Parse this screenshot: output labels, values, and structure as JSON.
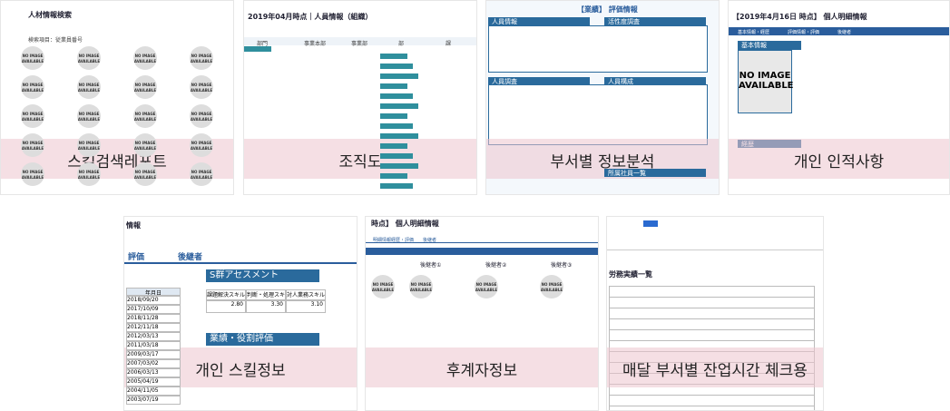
{
  "tiles": [
    {
      "caption": "스킬검색레포트",
      "heading": "人材情報検索",
      "sub": "検索項目：従業員番号",
      "no_image": "NO IMAGE AVAILABLE"
    },
    {
      "caption": "조직도",
      "heading": "2019年04月時点｜人員情報（組織）",
      "columns": [
        "部門",
        "事業本部",
        "事業部",
        "部",
        "課"
      ]
    },
    {
      "caption": "부서별 정보분석",
      "heading": "【業績】 評価情報",
      "panels": [
        "人員情報",
        "活性度調査",
        "人員調査",
        "人員構成",
        "所属社員一覧"
      ]
    },
    {
      "caption": "개인 인적사항",
      "heading": "【2019年4月16日 時点】 個人明細情報",
      "tabs": [
        "基本情報・経歴",
        "評価情報・評価",
        "後継者"
      ],
      "section": "基本情報",
      "no_image": "NO IMAGE AVAILABLE",
      "history": "経歴"
    },
    {
      "caption": "개인 스킬정보",
      "heading": "情報",
      "tabs": [
        "評価",
        "後継者"
      ],
      "assessment": "S群アセスメント",
      "skills": [
        "課題解決スキル",
        "判断・処理スキル",
        "対人業務スキル"
      ],
      "scores": [
        "2.80",
        "3.30",
        "3.10"
      ],
      "perf": "業績・役割評価",
      "date_header": "年月日",
      "dates": [
        "2018/09/20",
        "2017/10/09",
        "2018/11/28",
        "2012/11/18",
        "2012/03/13",
        "2011/03/18",
        "2009/03/17",
        "2007/03/02",
        "2006/03/13",
        "2005/04/19",
        "2004/11/05",
        "2003/07/19"
      ]
    },
    {
      "caption": "후계자정보",
      "heading": "時点】 個人明細情報",
      "tabs": [
        "明細情報経歴・評価",
        "後継者"
      ],
      "successors": [
        "後継者①",
        "後継者②",
        "後継者③"
      ],
      "no_image": "NO IMAGE AVAILABLE"
    },
    {
      "caption": "매달 부서별 잔업시간 체크용",
      "heading": "労務実績一覧"
    }
  ]
}
